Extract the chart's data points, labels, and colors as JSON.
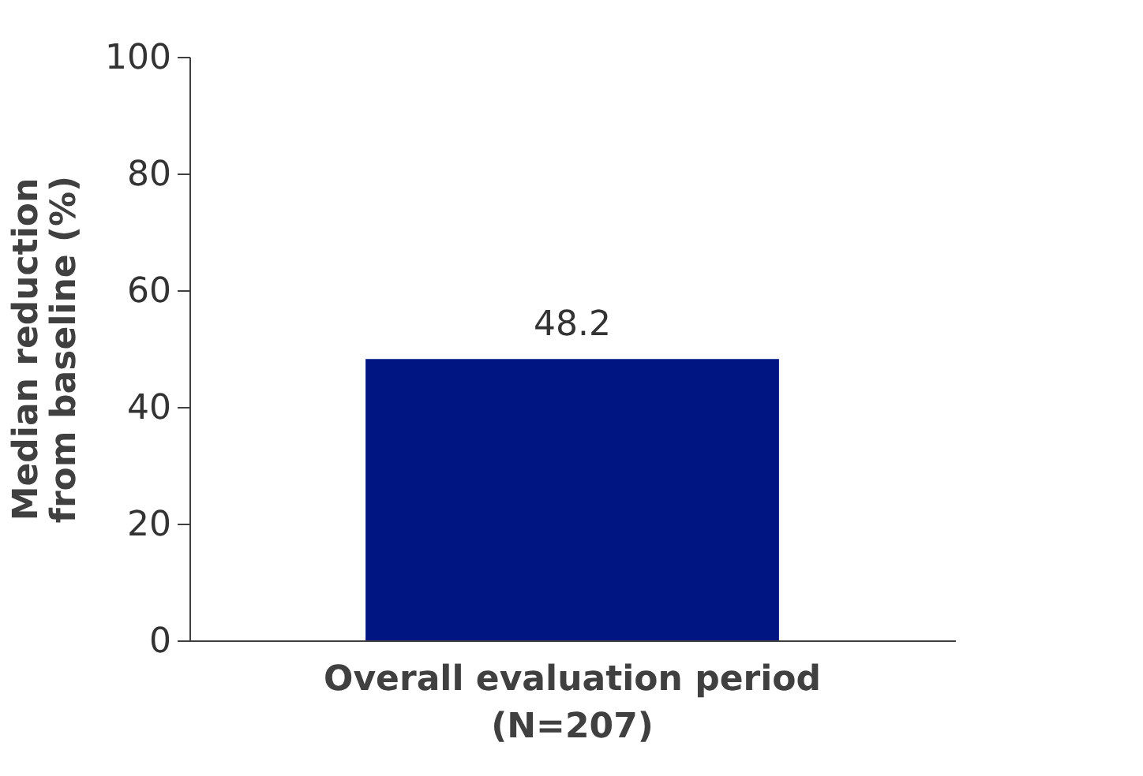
{
  "chart_data": {
    "type": "bar",
    "categories": [
      "Overall evaluation period\n(N=207)"
    ],
    "values": [
      48.2
    ],
    "color": "#001482",
    "ylabel": "Median reduction\nfrom baseline (%)",
    "ylim": [
      0,
      100
    ],
    "yticks": [
      0,
      20,
      40,
      60,
      80,
      100
    ],
    "data_labels": true,
    "grid": false
  }
}
